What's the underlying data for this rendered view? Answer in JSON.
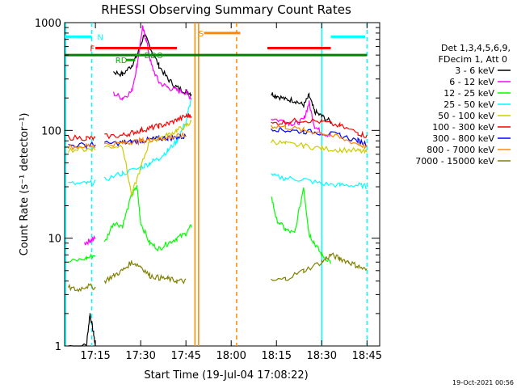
{
  "chart_data": {
    "type": "line",
    "title": "RHESSI Observing Summary Count Rates",
    "xlabel": "Start Time (19-Jul-04 17:08:22)",
    "ylabel": "Count Rate (s⁻¹ detector⁻¹)",
    "yscale": "log",
    "ylim": [
      1,
      1000
    ],
    "xlim_minutes": [
      17.08,
      18.82
    ],
    "x_ticks": [
      {
        "label": "17:15",
        "t": 17.25
      },
      {
        "label": "17:30",
        "t": 17.5
      },
      {
        "label": "17:45",
        "t": 17.75
      },
      {
        "label": "18:00",
        "t": 18.0
      },
      {
        "label": "18:15",
        "t": 18.25
      },
      {
        "label": "18:30",
        "t": 18.5
      },
      {
        "label": "18:45",
        "t": 18.75
      }
    ],
    "y_ticks": [
      {
        "label": "1",
        "v": 1
      },
      {
        "label": "10",
        "v": 10
      },
      {
        "label": "100",
        "v": 100
      },
      {
        "label": "1000",
        "v": 1000
      }
    ],
    "legend_header": [
      "Det 1,3,4,5,6,9,",
      "FDecim 1, Att 0"
    ],
    "series": [
      {
        "name": "3 - 6 keV",
        "color": "#000000",
        "segs": [
          [
            [
              17.1,
              1
            ],
            [
              17.2,
              1
            ],
            [
              17.22,
              2
            ],
            [
              17.24,
              1.3
            ],
            [
              17.25,
              1
            ]
          ],
          [
            [
              17.35,
              350
            ],
            [
              17.4,
              330
            ],
            [
              17.45,
              400
            ],
            [
              17.48,
              500
            ],
            [
              17.52,
              780
            ],
            [
              17.55,
              600
            ],
            [
              17.6,
              400
            ],
            [
              17.65,
              300
            ],
            [
              17.7,
              250
            ],
            [
              17.75,
              230
            ],
            [
              17.78,
              220
            ]
          ],
          [
            [
              18.22,
              220
            ],
            [
              18.25,
              210
            ],
            [
              18.3,
              195
            ],
            [
              18.35,
              190
            ],
            [
              18.4,
              170
            ],
            [
              18.43,
              210
            ],
            [
              18.46,
              150
            ],
            [
              18.5,
              135
            ],
            [
              18.55,
              120
            ]
          ]
        ]
      },
      {
        "name": "6 - 12 keV",
        "color": "#ff00ff",
        "segs": [
          [
            [
              17.19,
              9
            ],
            [
              17.22,
              9.5
            ],
            [
              17.25,
              10
            ]
          ],
          [
            [
              17.35,
              220
            ],
            [
              17.4,
              200
            ],
            [
              17.45,
              230
            ],
            [
              17.48,
              400
            ],
            [
              17.51,
              900
            ],
            [
              17.53,
              700
            ],
            [
              17.56,
              400
            ],
            [
              17.6,
              280
            ],
            [
              17.65,
              250
            ],
            [
              17.7,
              235
            ],
            [
              17.75,
              225
            ],
            [
              17.78,
              200
            ]
          ],
          [
            [
              18.22,
              130
            ],
            [
              18.3,
              120
            ],
            [
              18.35,
              115
            ],
            [
              18.4,
              125
            ],
            [
              18.43,
              180
            ],
            [
              18.46,
              110
            ],
            [
              18.5,
              95
            ],
            [
              18.55,
              90
            ]
          ]
        ]
      },
      {
        "name": "12 - 25 keV",
        "color": "#00ff00",
        "segs": [
          [
            [
              17.1,
              6
            ],
            [
              17.2,
              6.5
            ],
            [
              17.25,
              7
            ]
          ],
          [
            [
              17.3,
              9
            ],
            [
              17.35,
              14
            ],
            [
              17.4,
              13
            ],
            [
              17.45,
              25
            ],
            [
              17.48,
              30
            ],
            [
              17.5,
              14
            ],
            [
              17.55,
              9
            ],
            [
              17.6,
              8
            ],
            [
              17.65,
              9
            ],
            [
              17.7,
              10
            ],
            [
              17.75,
              11
            ],
            [
              17.78,
              13
            ]
          ],
          [
            [
              18.22,
              25
            ],
            [
              18.25,
              15
            ],
            [
              18.3,
              12
            ],
            [
              18.35,
              11
            ],
            [
              18.4,
              30
            ],
            [
              18.43,
              11
            ],
            [
              18.46,
              9
            ],
            [
              18.5,
              7
            ],
            [
              18.55,
              6
            ]
          ]
        ]
      },
      {
        "name": "25 - 50 keV",
        "color": "#00ffff",
        "segs": [
          [
            [
              17.1,
              32
            ],
            [
              17.2,
              32
            ],
            [
              17.25,
              33
            ]
          ],
          [
            [
              17.3,
              35
            ],
            [
              17.4,
              40
            ],
            [
              17.5,
              45
            ],
            [
              17.55,
              50
            ],
            [
              17.6,
              55
            ],
            [
              17.65,
              65
            ],
            [
              17.7,
              80
            ],
            [
              17.75,
              120
            ],
            [
              17.78,
              200
            ]
          ],
          [
            [
              18.22,
              38
            ],
            [
              18.3,
              36
            ],
            [
              18.4,
              35
            ],
            [
              18.5,
              32
            ],
            [
              18.6,
              31
            ],
            [
              18.7,
              31
            ],
            [
              18.75,
              30
            ]
          ]
        ]
      },
      {
        "name": "50 - 100 keV",
        "color": "#cccc00",
        "segs": [
          [
            [
              17.1,
              66
            ],
            [
              17.2,
              67
            ],
            [
              17.25,
              68
            ]
          ],
          [
            [
              17.3,
              70
            ],
            [
              17.4,
              72
            ],
            [
              17.45,
              25
            ],
            [
              17.5,
              45
            ],
            [
              17.55,
              80
            ],
            [
              17.6,
              85
            ],
            [
              17.65,
              90
            ],
            [
              17.7,
              100
            ],
            [
              17.75,
              110
            ],
            [
              17.78,
              120
            ]
          ],
          [
            [
              18.22,
              80
            ],
            [
              18.3,
              75
            ],
            [
              18.4,
              72
            ],
            [
              18.5,
              68
            ],
            [
              18.6,
              66
            ],
            [
              18.7,
              65
            ],
            [
              18.75,
              62
            ]
          ]
        ]
      },
      {
        "name": "100 - 300 keV",
        "color": "#ff0000",
        "segs": [
          [
            [
              17.1,
              86
            ],
            [
              17.2,
              85
            ],
            [
              17.25,
              84
            ]
          ],
          [
            [
              17.3,
              88
            ],
            [
              17.4,
              90
            ],
            [
              17.45,
              95
            ],
            [
              17.5,
              100
            ],
            [
              17.55,
              105
            ],
            [
              17.6,
              110
            ],
            [
              17.65,
              115
            ],
            [
              17.7,
              125
            ],
            [
              17.75,
              135
            ],
            [
              17.78,
              140
            ]
          ],
          [
            [
              18.22,
              115
            ],
            [
              18.3,
              120
            ],
            [
              18.4,
              125
            ],
            [
              18.5,
              120
            ],
            [
              18.6,
              110
            ],
            [
              18.7,
              95
            ],
            [
              18.75,
              88
            ]
          ]
        ]
      },
      {
        "name": "300 - 800 keV",
        "color": "#0000ff",
        "segs": [
          [
            [
              17.1,
              73
            ],
            [
              17.2,
              73
            ],
            [
              17.25,
              74
            ]
          ],
          [
            [
              17.3,
              75
            ],
            [
              17.4,
              77
            ],
            [
              17.45,
              78
            ],
            [
              17.5,
              80
            ],
            [
              17.55,
              82
            ],
            [
              17.6,
              84
            ],
            [
              17.65,
              85
            ],
            [
              17.7,
              86
            ],
            [
              17.75,
              88
            ]
          ],
          [
            [
              18.22,
              105
            ],
            [
              18.3,
              100
            ],
            [
              18.4,
              98
            ],
            [
              18.5,
              95
            ],
            [
              18.6,
              90
            ],
            [
              18.7,
              80
            ],
            [
              18.75,
              75
            ]
          ]
        ]
      },
      {
        "name": "800 - 7000 keV",
        "color": "#ff8800",
        "segs": [
          [
            [
              17.1,
              70
            ],
            [
              17.2,
              72
            ],
            [
              17.25,
              73
            ]
          ],
          [
            [
              17.3,
              74
            ],
            [
              17.4,
              76
            ],
            [
              17.45,
              78
            ],
            [
              17.5,
              80
            ],
            [
              17.55,
              82
            ],
            [
              17.6,
              84
            ],
            [
              17.65,
              86
            ],
            [
              17.7,
              88
            ],
            [
              17.75,
              90
            ]
          ],
          [
            [
              18.22,
              110
            ],
            [
              18.3,
              108
            ],
            [
              18.4,
              100
            ],
            [
              18.5,
              95
            ],
            [
              18.6,
              85
            ],
            [
              18.7,
              75
            ],
            [
              18.75,
              70
            ]
          ]
        ]
      },
      {
        "name": "7000 - 15000 keV",
        "color": "#808000",
        "segs": [
          [
            [
              17.1,
              3.5
            ],
            [
              17.15,
              3.3
            ],
            [
              17.2,
              3.6
            ],
            [
              17.25,
              3.5
            ]
          ],
          [
            [
              17.3,
              4
            ],
            [
              17.35,
              4.5
            ],
            [
              17.4,
              5
            ],
            [
              17.45,
              6
            ],
            [
              17.5,
              5.5
            ],
            [
              17.55,
              4.5
            ],
            [
              17.6,
              4.3
            ],
            [
              17.65,
              4.2
            ],
            [
              17.7,
              4
            ],
            [
              17.75,
              4
            ]
          ],
          [
            [
              18.22,
              4
            ],
            [
              18.3,
              4.2
            ],
            [
              18.4,
              5
            ],
            [
              18.5,
              6
            ],
            [
              18.55,
              7
            ],
            [
              18.6,
              6.5
            ],
            [
              18.65,
              6
            ],
            [
              18.7,
              5.5
            ],
            [
              18.75,
              5
            ]
          ]
        ]
      }
    ],
    "state_bars": [
      {
        "label": "N",
        "color": "#00ffff",
        "t1": 17.08,
        "t2": 17.23,
        "v": 740,
        "label_t": 17.26
      },
      {
        "label": "N",
        "color": "#00ffff",
        "t1": 18.55,
        "t2": 18.74,
        "v": 740,
        "label_t": null
      },
      {
        "label": "S",
        "color": "#ff8800",
        "t1": 17.85,
        "t2": 18.05,
        "v": 800,
        "label_t": 17.82
      },
      {
        "label": "F",
        "color": "#ff0000",
        "t1": 17.25,
        "t2": 17.7,
        "v": 580,
        "label_t": 17.22
      },
      {
        "label": "",
        "color": "#ff0000",
        "t1": 18.2,
        "t2": 18.55,
        "v": 580,
        "label_t": null
      },
      {
        "label": "",
        "color": "#008000",
        "t1": 17.08,
        "t2": 18.75,
        "v": 500,
        "label_t": null
      },
      {
        "label": "DDO",
        "color": "#00aa00",
        "t1": 17.47,
        "t2": 17.5,
        "v": 500,
        "label_t": 17.52
      },
      {
        "label": "RD",
        "color": "#00aa00",
        "t1": 17.42,
        "t2": 17.47,
        "v": 450,
        "label_t": 17.36
      }
    ],
    "vlines": [
      {
        "t": 17.085,
        "color": "#00ffff",
        "dash": false
      },
      {
        "t": 17.23,
        "color": "#00ffff",
        "dash": true
      },
      {
        "t": 17.8,
        "color": "#ff8800",
        "dash": false
      },
      {
        "t": 17.82,
        "color": "#ff8800",
        "dash": false
      },
      {
        "t": 18.03,
        "color": "#ff8800",
        "dash": true
      },
      {
        "t": 18.5,
        "color": "#00ffff",
        "dash": false
      },
      {
        "t": 18.75,
        "color": "#00ffff",
        "dash": true
      }
    ]
  },
  "footer_timestamp": "19-Oct-2021 00:56"
}
